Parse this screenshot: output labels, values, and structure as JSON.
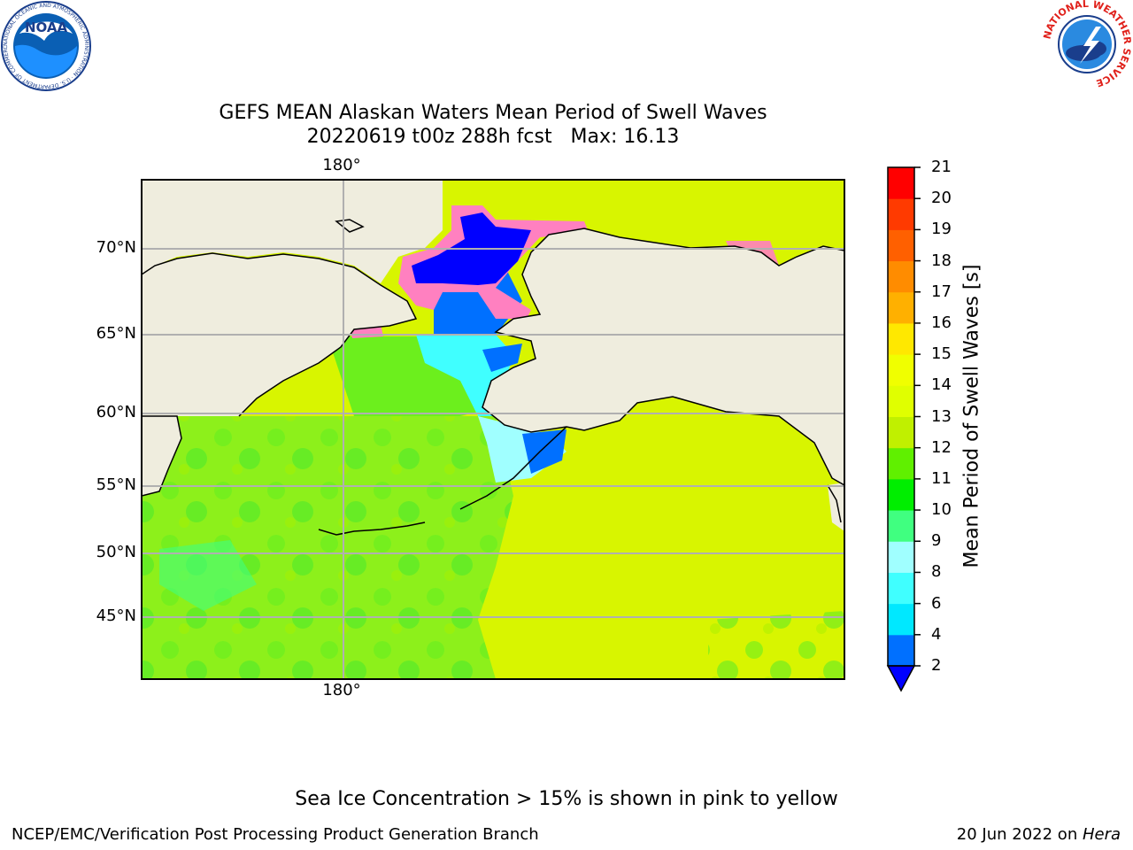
{
  "title": {
    "line1": "GEFS MEAN Alaskan Waters Mean Period of Swell Waves",
    "line2": "20220619 t00z 288h fcst   Max: 16.13"
  },
  "map": {
    "lat_labels": [
      "70°N",
      "65°N",
      "60°N",
      "55°N",
      "50°N",
      "45°N"
    ],
    "lon_label_top": "180°",
    "lon_label_bottom": "180°",
    "land_color": "#efedde",
    "grid_color": "#b0b0b0"
  },
  "colorbar": {
    "title": "Mean Period of Swell Waves [s]",
    "ticks": [
      "2",
      "4",
      "6",
      "8",
      "9",
      "10",
      "11",
      "12",
      "13",
      "14",
      "15",
      "16",
      "17",
      "18",
      "19",
      "20",
      "21"
    ],
    "colors": [
      "#0070ff",
      "#00e8ff",
      "#40ffff",
      "#a0ffff",
      "#40ff80",
      "#00ee00",
      "#60f000",
      "#c0f000",
      "#e0ff00",
      "#f0ff00",
      "#ffe800",
      "#ffb000",
      "#ff8c00",
      "#ff6000",
      "#ff3a00",
      "#ff0000"
    ],
    "under_color": "#0000ff"
  },
  "ice_note": "Sea Ice Concentration > 15% is shown in pink to yellow",
  "footer": {
    "left": "NCEP/EMC/Verification Post Processing Product Generation Branch",
    "right_prefix": "20 Jun 2022 on ",
    "right_machine": "Hera"
  },
  "logos": {
    "noaa_text": "NOAA",
    "noaa_ring_text": "NATIONAL OCEANIC AND ATMOSPHERIC ADMINISTRATION · U.S. DEPARTMENT OF COMMERCE",
    "nws_ring_text": "NATIONAL WEATHER SERVICE"
  }
}
